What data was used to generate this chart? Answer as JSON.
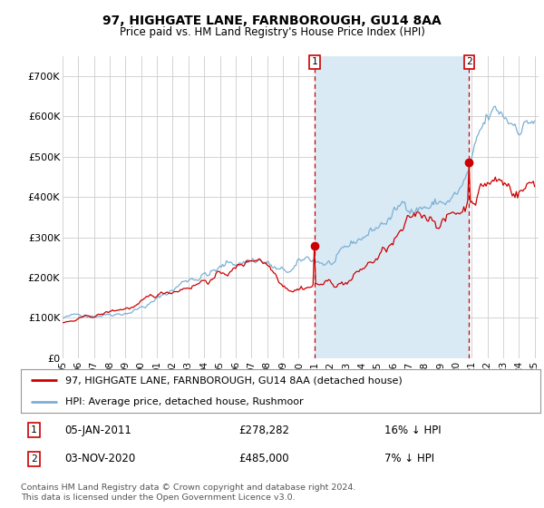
{
  "title": "97, HIGHGATE LANE, FARNBOROUGH, GU14 8AA",
  "subtitle": "Price paid vs. HM Land Registry's House Price Index (HPI)",
  "ylim": [
    0,
    750000
  ],
  "yticks": [
    0,
    100000,
    200000,
    300000,
    400000,
    500000,
    600000,
    700000
  ],
  "ytick_labels": [
    "£0",
    "£100K",
    "£200K",
    "£300K",
    "£400K",
    "£500K",
    "£600K",
    "£700K"
  ],
  "background_color": "#ffffff",
  "plot_bg_color": "#ffffff",
  "grid_color": "#cccccc",
  "hpi_color": "#7ab0d4",
  "hpi_fill_color": "#daeaf5",
  "price_color": "#cc0000",
  "marker1_date": "05-JAN-2011",
  "marker1_price": 278282,
  "marker1_note": "16% ↓ HPI",
  "marker2_date": "03-NOV-2020",
  "marker2_price": 485000,
  "marker2_note": "7% ↓ HPI",
  "legend_line1": "97, HIGHGATE LANE, FARNBOROUGH, GU14 8AA (detached house)",
  "legend_line2": "HPI: Average price, detached house, Rushmoor",
  "footer": "Contains HM Land Registry data © Crown copyright and database right 2024.\nThis data is licensed under the Open Government Licence v3.0.",
  "sale1_x": 2011.0,
  "sale1_y": 278282,
  "sale2_x": 2020.833,
  "sale2_y": 485000,
  "xlim_left": 1995.0,
  "xlim_right": 2025.25
}
